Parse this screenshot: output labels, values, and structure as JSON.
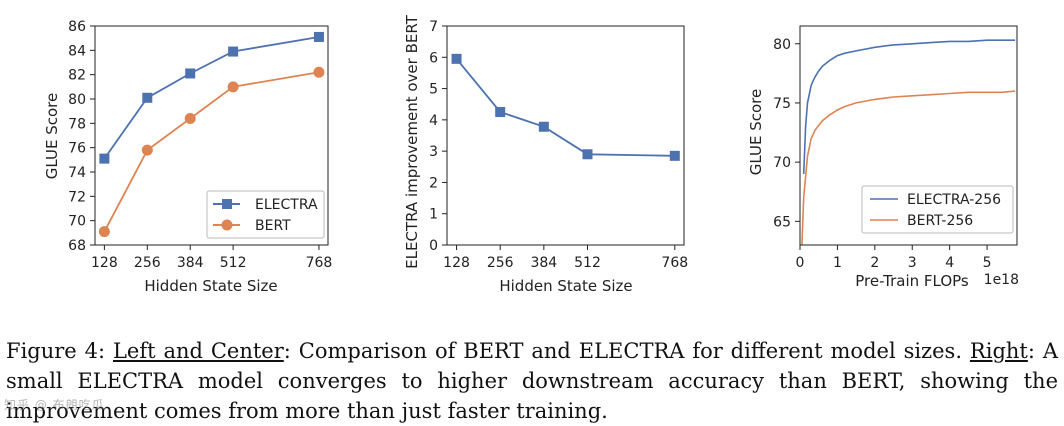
{
  "colors": {
    "electra": "#4c72b0",
    "bert": "#dd8452"
  },
  "chart_data": [
    {
      "type": "line",
      "title": "",
      "xlabel": "Hidden State Size",
      "ylabel": "GLUE Score",
      "x": [
        128,
        256,
        384,
        512,
        768
      ],
      "xticks": [
        "128",
        "256",
        "384",
        "512",
        "768"
      ],
      "xlim": [
        100,
        795
      ],
      "ylim": [
        68,
        86
      ],
      "yticks": [
        "68",
        "70",
        "72",
        "74",
        "76",
        "78",
        "80",
        "82",
        "84",
        "86"
      ],
      "legend_position": "bottom-right",
      "series": [
        {
          "name": "ELECTRA",
          "marker": "square",
          "values": [
            75.1,
            80.1,
            82.1,
            83.9,
            85.1
          ]
        },
        {
          "name": "BERT",
          "marker": "circle",
          "values": [
            69.1,
            75.8,
            78.4,
            81.0,
            82.2
          ]
        }
      ]
    },
    {
      "type": "line",
      "title": "",
      "xlabel": "Hidden State Size",
      "ylabel": "ELECTRA improvement over BERT",
      "x": [
        128,
        256,
        384,
        512,
        768
      ],
      "xticks": [
        "128",
        "256",
        "384",
        "512",
        "768"
      ],
      "xlim": [
        100,
        795
      ],
      "ylim": [
        0,
        7
      ],
      "yticks": [
        "0",
        "1",
        "2",
        "3",
        "4",
        "5",
        "6",
        "7"
      ],
      "series": [
        {
          "name": "ELECTRA improvement",
          "marker": "square",
          "values": [
            5.95,
            4.25,
            3.78,
            2.9,
            2.85
          ]
        }
      ]
    },
    {
      "type": "line",
      "title": "",
      "xlabel": "Pre-Train FLOPs",
      "x_offset_label": "1e18",
      "ylabel": "GLUE Score",
      "xlim": [
        0,
        5.8
      ],
      "xticks": [
        "0",
        "1",
        "2",
        "3",
        "4",
        "5"
      ],
      "ylim": [
        63,
        81.5
      ],
      "yticks": [
        "65",
        "70",
        "75",
        "80"
      ],
      "legend_position": "bottom-right",
      "series": [
        {
          "name": "ELECTRA-256",
          "x": [
            0.1,
            0.15,
            0.2,
            0.3,
            0.4,
            0.5,
            0.6,
            0.8,
            1.0,
            1.2,
            1.5,
            2.0,
            2.5,
            3.0,
            3.5,
            4.0,
            4.5,
            5.0,
            5.4,
            5.75
          ],
          "values": [
            69,
            73,
            75,
            76.5,
            77.2,
            77.7,
            78.1,
            78.6,
            79,
            79.2,
            79.4,
            79.7,
            79.9,
            80,
            80.1,
            80.2,
            80.2,
            80.3,
            80.3,
            80.3
          ]
        },
        {
          "name": "BERT-256",
          "x": [
            0.05,
            0.1,
            0.2,
            0.3,
            0.4,
            0.5,
            0.6,
            0.8,
            1.0,
            1.2,
            1.5,
            2.0,
            2.5,
            3.0,
            3.5,
            4.0,
            4.5,
            5.0,
            5.4,
            5.75
          ],
          "values": [
            63,
            67,
            70.5,
            72,
            72.7,
            73.1,
            73.5,
            74,
            74.4,
            74.7,
            75,
            75.3,
            75.5,
            75.6,
            75.7,
            75.8,
            75.9,
            75.9,
            75.9,
            76
          ]
        }
      ]
    }
  ],
  "caption": {
    "prefix": "Figure 4: ",
    "left_center": "Left and Center",
    "part1": ": Comparison of BERT and ELECTRA for different model sizes. ",
    "right": "Right",
    "part2": ": A small ELECTRA model converges to higher downstream accuracy than BERT, showing the improvement comes from more than just faster training."
  },
  "watermark": "知乎 @ 布朗吃瓜"
}
